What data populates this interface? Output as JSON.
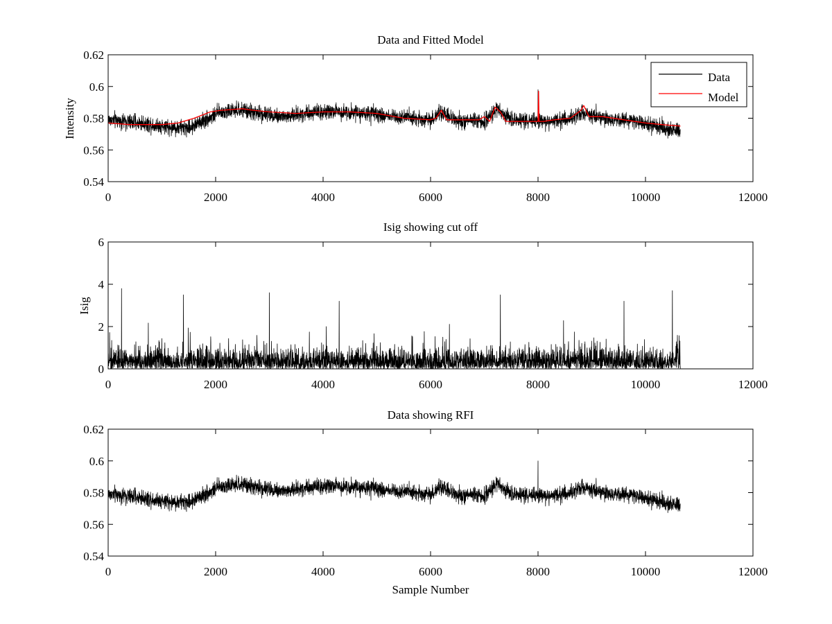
{
  "figure": {
    "background": "#ffffff",
    "axis_color": "#000000"
  },
  "chart_data": [
    {
      "type": "line",
      "title": "Data and Fitted Model",
      "xlabel": "",
      "ylabel": "Intensity",
      "xlim": [
        0,
        12000
      ],
      "ylim": [
        0.54,
        0.62
      ],
      "xticks": [
        0,
        2000,
        4000,
        6000,
        8000,
        10000,
        12000
      ],
      "yticks": [
        0.54,
        0.56,
        0.58,
        0.6,
        0.62
      ],
      "xtick_labels": [
        "0",
        "2000",
        "4000",
        "6000",
        "8000",
        "10000",
        "12000"
      ],
      "ytick_labels": [
        "0.54",
        "0.56",
        "0.58",
        "0.6",
        "0.62"
      ],
      "grid": false,
      "legend": {
        "position": "top-right",
        "entries": [
          "Data",
          "Model"
        ]
      },
      "n_samples": 10650,
      "series": [
        {
          "name": "Data",
          "color": "#000000",
          "style": "noisy",
          "baseline": {
            "x": [
              0,
              600,
              1200,
              1500,
              1800,
              2100,
              2500,
              2800,
              3300,
              3800,
              4500,
              5000,
              5500,
              6000,
              6200,
              6500,
              7000,
              7250,
              7500,
              8000,
              8500,
              8850,
              9200,
              9800,
              10300,
              10650
            ],
            "y": [
              0.579,
              0.577,
              0.574,
              0.574,
              0.579,
              0.584,
              0.585,
              0.583,
              0.581,
              0.584,
              0.584,
              0.582,
              0.581,
              0.579,
              0.583,
              0.578,
              0.578,
              0.586,
              0.579,
              0.578,
              0.579,
              0.584,
              0.58,
              0.578,
              0.574,
              0.572
            ]
          },
          "noise_amplitude": 0.0045,
          "spikes": [
            {
              "x": 8000,
              "y": 0.598
            },
            {
              "x": 8020,
              "y": 0.574
            }
          ]
        },
        {
          "name": "Model",
          "color": "#ff0000",
          "style": "smooth",
          "x": [
            0,
            400,
            1000,
            1300,
            1600,
            1900,
            2100,
            2500,
            2700,
            3000,
            3500,
            4000,
            4500,
            5000,
            5500,
            6000,
            6100,
            6200,
            6300,
            6500,
            6900,
            7000,
            7100,
            7200,
            7300,
            7400,
            7600,
            7900,
            8000,
            8010,
            8020,
            8100,
            8300,
            8600,
            8800,
            8850,
            8950,
            9200,
            9600,
            10000,
            10300,
            10650
          ],
          "y": [
            0.577,
            0.576,
            0.576,
            0.577,
            0.58,
            0.584,
            0.585,
            0.586,
            0.585,
            0.584,
            0.583,
            0.584,
            0.584,
            0.583,
            0.58,
            0.579,
            0.58,
            0.585,
            0.579,
            0.579,
            0.579,
            0.581,
            0.578,
            0.587,
            0.584,
            0.578,
            0.578,
            0.578,
            0.578,
            0.597,
            0.578,
            0.578,
            0.579,
            0.58,
            0.585,
            0.588,
            0.581,
            0.581,
            0.579,
            0.577,
            0.576,
            0.575
          ]
        }
      ]
    },
    {
      "type": "line",
      "title": "Isig showing cut off",
      "xlabel": "",
      "ylabel": "Isig",
      "xlim": [
        0,
        12000
      ],
      "ylim": [
        0,
        6
      ],
      "xticks": [
        0,
        2000,
        4000,
        6000,
        8000,
        10000,
        12000
      ],
      "yticks": [
        0,
        2,
        4,
        6
      ],
      "xtick_labels": [
        "0",
        "2000",
        "4000",
        "6000",
        "8000",
        "10000",
        "12000"
      ],
      "ytick_labels": [
        "0",
        "2",
        "4",
        "6"
      ],
      "grid": false,
      "n_samples": 10650,
      "series": [
        {
          "color": "#000000",
          "style": "abs-noise",
          "scale": 0.8,
          "peaks": [
            {
              "x": 250,
              "y": 3.8
            },
            {
              "x": 3000,
              "y": 3.6
            },
            {
              "x": 1400,
              "y": 3.5
            },
            {
              "x": 7300,
              "y": 3.5
            },
            {
              "x": 10500,
              "y": 3.7
            },
            {
              "x": 4300,
              "y": 3.2
            },
            {
              "x": 9600,
              "y": 3.2
            }
          ]
        }
      ]
    },
    {
      "type": "line",
      "title": "Data showing RFI",
      "xlabel": "Sample Number",
      "ylabel": "",
      "xlim": [
        0,
        12000
      ],
      "ylim": [
        0.54,
        0.62
      ],
      "xticks": [
        0,
        2000,
        4000,
        6000,
        8000,
        10000,
        12000
      ],
      "yticks": [
        0.54,
        0.56,
        0.58,
        0.6,
        0.62
      ],
      "xtick_labels": [
        "0",
        "2000",
        "4000",
        "6000",
        "8000",
        "10000",
        "12000"
      ],
      "ytick_labels": [
        "0.54",
        "0.56",
        "0.58",
        "0.6",
        "0.62"
      ],
      "grid": false,
      "n_samples": 10650,
      "series": [
        {
          "color": "#000000",
          "style": "noisy",
          "baseline": {
            "x": [
              0,
              600,
              1200,
              1500,
              1800,
              2100,
              2500,
              2800,
              3300,
              3800,
              4500,
              5000,
              5500,
              6000,
              6200,
              6500,
              7000,
              7250,
              7500,
              8000,
              8500,
              8850,
              9200,
              9800,
              10300,
              10650
            ],
            "y": [
              0.579,
              0.577,
              0.574,
              0.574,
              0.579,
              0.584,
              0.585,
              0.583,
              0.581,
              0.584,
              0.584,
              0.582,
              0.581,
              0.579,
              0.583,
              0.578,
              0.578,
              0.586,
              0.579,
              0.578,
              0.579,
              0.584,
              0.58,
              0.578,
              0.574,
              0.572
            ]
          },
          "noise_amplitude": 0.0045,
          "spikes": [
            {
              "x": 8000,
              "y": 0.6
            },
            {
              "x": 8020,
              "y": 0.574
            }
          ]
        }
      ]
    }
  ]
}
